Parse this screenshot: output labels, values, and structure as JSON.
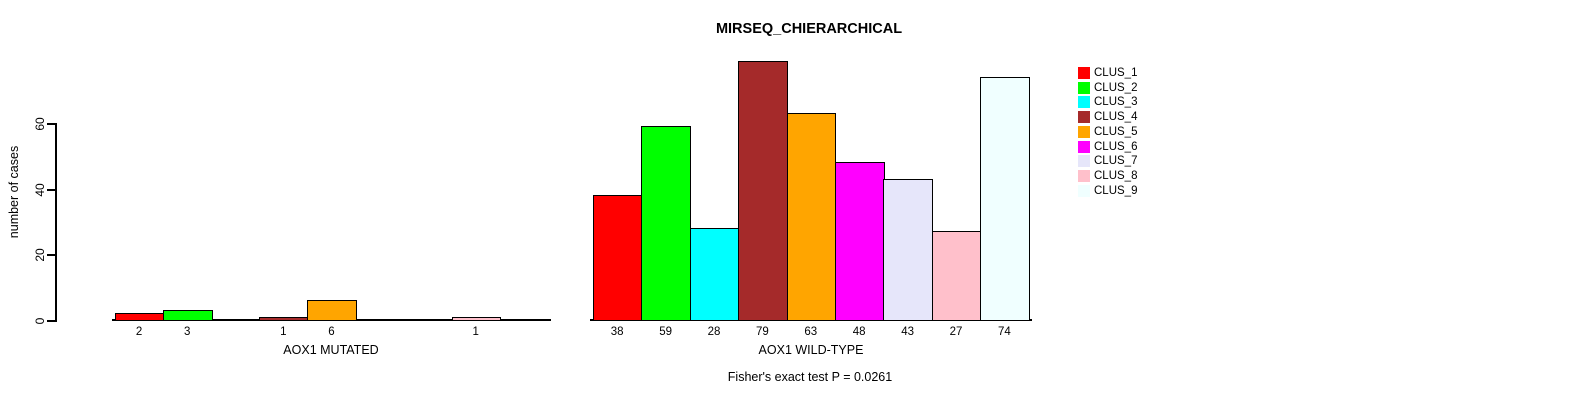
{
  "chart_data": {
    "type": "bar",
    "title": "MIRSEQ_CHIERARCHICAL",
    "ylabel": "number of cases",
    "ylim": [
      0,
      60
    ],
    "yticks": [
      0,
      20,
      40,
      60
    ],
    "grid": false,
    "legend_position": "right",
    "annotation": "Fisher's exact test P = 0.0261",
    "clusters": [
      "CLUS_1",
      "CLUS_2",
      "CLUS_3",
      "CLUS_4",
      "CLUS_5",
      "CLUS_6",
      "CLUS_7",
      "CLUS_8",
      "CLUS_9"
    ],
    "colors": [
      "#FF0000",
      "#00FF00",
      "#00FFFF",
      "#A52A2A",
      "#FFA500",
      "#FF00FF",
      "#E6E6FA",
      "#FFC0CB",
      "#F0FFFF"
    ],
    "panels": [
      {
        "xlabel": "AOX1 MUTATED",
        "values": [
          2,
          3,
          0,
          1,
          6,
          0,
          0,
          1,
          0
        ]
      },
      {
        "xlabel": "AOX1 WILD-TYPE",
        "values": [
          38,
          59,
          28,
          79,
          63,
          48,
          43,
          27,
          74
        ]
      }
    ]
  }
}
